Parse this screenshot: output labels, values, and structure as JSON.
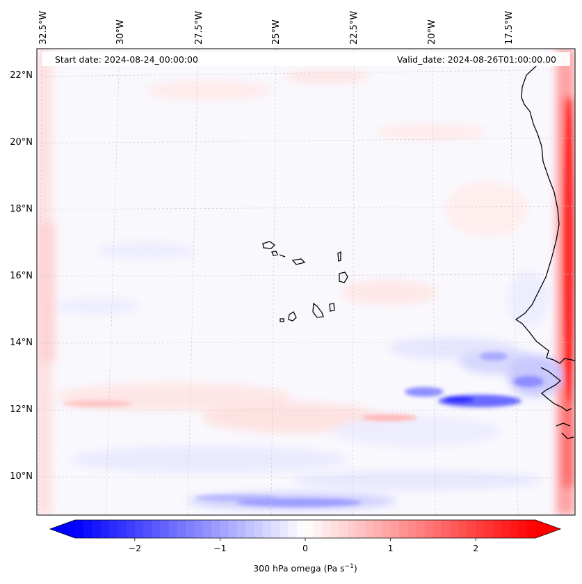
{
  "map": {
    "start_date": "Start date: 2024-08-24_00:00:00",
    "valid_date": "Valid_date: 2024-08-26T01:00:00.00",
    "lon_labels": [
      "32.5°W",
      "30°W",
      "27.5°W",
      "25°W",
      "22.5°W",
      "20°W",
      "17.5°W"
    ],
    "lat_labels": [
      "22°N",
      "20°N",
      "18°N",
      "16°N",
      "14°N",
      "12°N",
      "10°N"
    ]
  },
  "colorbar": {
    "label": "300 hPa omega (Pa s",
    "label_sup": "−1",
    "label_close": ")",
    "ticks": [
      "−2",
      "−1",
      "0",
      "1",
      "2"
    ],
    "tick_values": [
      -2,
      -1,
      0,
      1,
      2
    ],
    "range": [
      -2.7,
      2.7
    ],
    "colors": {
      "negative": "#0000ff",
      "zero": "#ffffff",
      "positive": "#ff0000"
    }
  }
}
